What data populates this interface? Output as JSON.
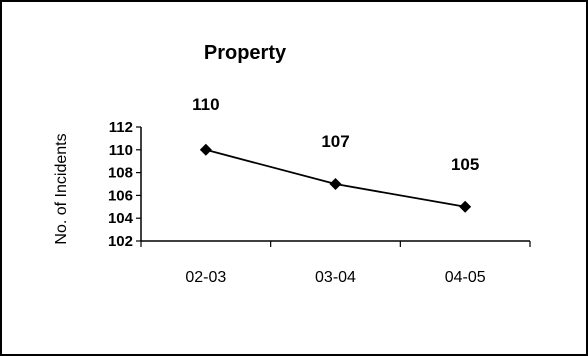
{
  "chart_data": {
    "type": "line",
    "title": "Property",
    "xlabel": "",
    "ylabel": "No. of Incidents",
    "categories": [
      "02-03",
      "03-04",
      "04-05"
    ],
    "series": [
      {
        "values": [
          110,
          107,
          105
        ],
        "color": "#000000",
        "marker": "diamond"
      }
    ],
    "data_labels": [
      "110",
      "107",
      "105"
    ],
    "yticks": [
      "102",
      "104",
      "106",
      "108",
      "110",
      "112"
    ],
    "ylim": [
      102,
      112
    ],
    "grid": false,
    "legend": "none"
  }
}
